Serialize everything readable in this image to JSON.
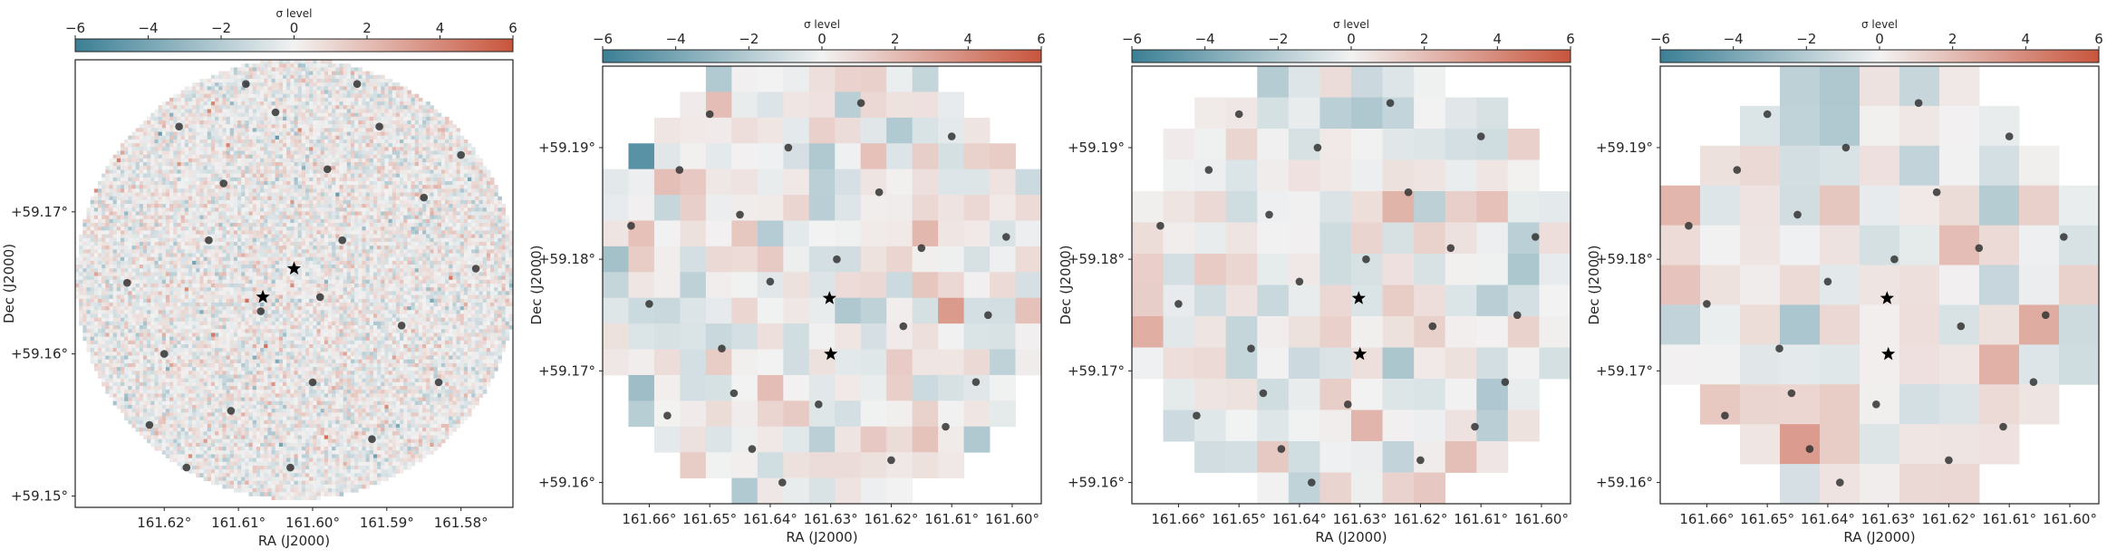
{
  "chart_data": [
    {
      "type": "heatmap",
      "title": "",
      "colorbar": {
        "label": "σ level",
        "range": [
          -6,
          6
        ],
        "ticks": [
          "−6",
          "−4",
          "−2",
          "0",
          "2",
          "4",
          "6"
        ],
        "low_color": "#3b7f95",
        "mid_color": "#f2f2f2",
        "high_color": "#c8553d",
        "position": "top"
      },
      "xlabel": "RA (J2000)",
      "ylabel": "Dec (J2000)",
      "xlim": [
        161.632,
        161.573
      ],
      "ylim": [
        59.1492,
        59.1807
      ],
      "x_ticks": [
        "161.62°",
        "161.61°",
        "161.60°",
        "161.59°",
        "161.58°"
      ],
      "y_ticks": [
        "+59.15°",
        "+59.16°",
        "+59.17°"
      ],
      "grid": false,
      "stars": [
        [
          161.6025,
          59.166
        ],
        [
          161.6067,
          59.164
        ]
      ],
      "sources": [
        [
          161.618,
          59.176
        ],
        [
          161.612,
          59.172
        ],
        [
          161.605,
          59.177
        ],
        [
          161.598,
          59.173
        ],
        [
          161.591,
          59.176
        ],
        [
          161.585,
          59.171
        ],
        [
          161.614,
          59.168
        ],
        [
          161.607,
          59.163
        ],
        [
          161.596,
          59.168
        ],
        [
          161.588,
          59.162
        ],
        [
          161.62,
          59.16
        ],
        [
          161.611,
          59.156
        ],
        [
          161.6,
          59.158
        ],
        [
          161.592,
          59.154
        ],
        [
          161.583,
          59.158
        ],
        [
          161.617,
          59.152
        ],
        [
          161.603,
          59.152
        ],
        [
          161.609,
          59.179
        ],
        [
          161.594,
          59.179
        ],
        [
          161.625,
          59.165
        ],
        [
          161.578,
          59.166
        ],
        [
          161.622,
          59.155
        ],
        [
          161.58,
          59.174
        ],
        [
          161.599,
          59.164
        ]
      ]
    },
    {
      "type": "heatmap",
      "title": "",
      "colorbar": {
        "label": "σ level",
        "range": [
          -6,
          6
        ],
        "ticks": [
          "−6",
          "−4",
          "−2",
          "0",
          "2",
          "4",
          "6"
        ],
        "low_color": "#3b7f95",
        "mid_color": "#f2f2f2",
        "high_color": "#c8553d",
        "position": "top"
      },
      "xlabel": "RA (J2000)",
      "ylabel": "Dec (J2000)",
      "xlim": [
        161.6677,
        161.5952
      ],
      "ylim": [
        59.1581,
        59.1973
      ],
      "x_ticks": [
        "161.66°",
        "161.65°",
        "161.64°",
        "161.63°",
        "161.62°",
        "161.61°",
        "161.60°"
      ],
      "y_ticks": [
        "+59.16°",
        "+59.17°",
        "+59.18°",
        "+59.19°"
      ],
      "grid": false,
      "stars": [
        [
          161.6302,
          59.1765
        ],
        [
          161.63,
          59.1715
        ]
      ],
      "sources": [
        [
          161.655,
          59.188
        ],
        [
          161.645,
          59.184
        ],
        [
          161.637,
          59.19
        ],
        [
          161.622,
          59.186
        ],
        [
          161.61,
          59.191
        ],
        [
          161.601,
          59.182
        ],
        [
          161.66,
          59.176
        ],
        [
          161.648,
          59.172
        ],
        [
          161.64,
          59.178
        ],
        [
          161.618,
          59.174
        ],
        [
          161.606,
          59.169
        ],
        [
          161.657,
          59.166
        ],
        [
          161.643,
          59.163
        ],
        [
          161.632,
          59.167
        ],
        [
          161.62,
          59.162
        ],
        [
          161.611,
          59.165
        ],
        [
          161.65,
          59.193
        ],
        [
          161.625,
          59.194
        ],
        [
          161.638,
          59.16
        ],
        [
          161.615,
          59.181
        ],
        [
          161.663,
          59.183
        ],
        [
          161.629,
          59.18
        ],
        [
          161.604,
          59.175
        ],
        [
          161.646,
          59.168
        ]
      ]
    },
    {
      "type": "heatmap",
      "title": "",
      "colorbar": {
        "label": "σ level",
        "range": [
          -6,
          6
        ],
        "ticks": [
          "−6",
          "−4",
          "−2",
          "0",
          "2",
          "4",
          "6"
        ],
        "low_color": "#3b7f95",
        "mid_color": "#f2f2f2",
        "high_color": "#c8553d",
        "position": "top"
      },
      "xlabel": "RA (J2000)",
      "ylabel": "Dec (J2000)",
      "xlim": [
        161.6677,
        161.5952
      ],
      "ylim": [
        59.1581,
        59.1973
      ],
      "x_ticks": [
        "161.66°",
        "161.65°",
        "161.64°",
        "161.63°",
        "161.62°",
        "161.61°",
        "161.60°"
      ],
      "y_ticks": [
        "+59.16°",
        "+59.17°",
        "+59.18°",
        "+59.19°"
      ],
      "grid": false,
      "stars": [
        [
          161.6302,
          59.1765
        ],
        [
          161.63,
          59.1715
        ]
      ],
      "sources": [
        [
          161.655,
          59.188
        ],
        [
          161.645,
          59.184
        ],
        [
          161.637,
          59.19
        ],
        [
          161.622,
          59.186
        ],
        [
          161.61,
          59.191
        ],
        [
          161.601,
          59.182
        ],
        [
          161.66,
          59.176
        ],
        [
          161.648,
          59.172
        ],
        [
          161.64,
          59.178
        ],
        [
          161.618,
          59.174
        ],
        [
          161.606,
          59.169
        ],
        [
          161.657,
          59.166
        ],
        [
          161.643,
          59.163
        ],
        [
          161.632,
          59.167
        ],
        [
          161.62,
          59.162
        ],
        [
          161.611,
          59.165
        ],
        [
          161.65,
          59.193
        ],
        [
          161.625,
          59.194
        ],
        [
          161.638,
          59.16
        ],
        [
          161.615,
          59.181
        ],
        [
          161.663,
          59.183
        ],
        [
          161.629,
          59.18
        ],
        [
          161.604,
          59.175
        ],
        [
          161.646,
          59.168
        ]
      ]
    },
    {
      "type": "heatmap",
      "title": "",
      "colorbar": {
        "label": "σ level",
        "range": [
          -6,
          6
        ],
        "ticks": [
          "−6",
          "−4",
          "−2",
          "0",
          "2",
          "4",
          "6"
        ],
        "low_color": "#3b7f95",
        "mid_color": "#f2f2f2",
        "high_color": "#c8553d",
        "position": "top"
      },
      "xlabel": "RA (J2000)",
      "ylabel": "Dec (J2000)",
      "xlim": [
        161.6677,
        161.5952
      ],
      "ylim": [
        59.1581,
        59.1973
      ],
      "x_ticks": [
        "161.66°",
        "161.65°",
        "161.64°",
        "161.63°",
        "161.62°",
        "161.61°",
        "161.60°"
      ],
      "y_ticks": [
        "+59.16°",
        "+59.17°",
        "+59.18°",
        "+59.19°"
      ],
      "grid": false,
      "stars": [
        [
          161.6302,
          59.1765
        ],
        [
          161.63,
          59.1715
        ]
      ],
      "sources": [
        [
          161.655,
          59.188
        ],
        [
          161.645,
          59.184
        ],
        [
          161.637,
          59.19
        ],
        [
          161.622,
          59.186
        ],
        [
          161.61,
          59.191
        ],
        [
          161.601,
          59.182
        ],
        [
          161.66,
          59.176
        ],
        [
          161.648,
          59.172
        ],
        [
          161.64,
          59.178
        ],
        [
          161.618,
          59.174
        ],
        [
          161.606,
          59.169
        ],
        [
          161.657,
          59.166
        ],
        [
          161.643,
          59.163
        ],
        [
          161.632,
          59.167
        ],
        [
          161.62,
          59.162
        ],
        [
          161.611,
          59.165
        ],
        [
          161.65,
          59.193
        ],
        [
          161.625,
          59.194
        ],
        [
          161.638,
          59.16
        ],
        [
          161.615,
          59.181
        ],
        [
          161.663,
          59.183
        ],
        [
          161.629,
          59.18
        ],
        [
          161.604,
          59.175
        ],
        [
          161.646,
          59.168
        ]
      ]
    }
  ]
}
